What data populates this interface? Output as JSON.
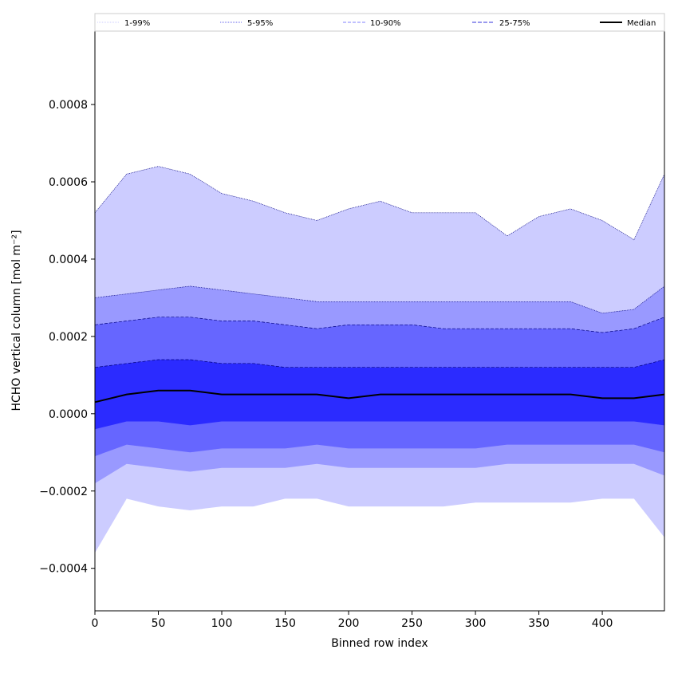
{
  "chart_data": {
    "type": "area",
    "xlabel": "Binned row index",
    "ylabel": "HCHO vertical column [mol m⁻²]",
    "xlim": [
      0,
      449
    ],
    "ylim": [
      -0.00051,
      0.00099
    ],
    "x_ticks": [
      0,
      50,
      100,
      150,
      200,
      250,
      300,
      350,
      400
    ],
    "x_tick_labels": [
      "0",
      "50",
      "100",
      "150",
      "200",
      "250",
      "300",
      "350",
      "400"
    ],
    "y_ticks": [
      -0.0004,
      -0.0002,
      0.0,
      0.0002,
      0.0004,
      0.0006,
      0.0008
    ],
    "y_tick_labels": [
      "−0.0004",
      "−0.0002",
      "0.0000",
      "0.0002",
      "0.0004",
      "0.0006",
      "0.0008"
    ],
    "grid": false,
    "legend_position": "top",
    "legend": [
      {
        "label": "1-99%",
        "color": "#ccccff",
        "dash": "1,1"
      },
      {
        "label": "5-95%",
        "color": "#6666ee",
        "dash": "1,1"
      },
      {
        "label": "10-90%",
        "color": "#8080ff",
        "dash": "4,2"
      },
      {
        "label": "25-75%",
        "color": "#3333dd",
        "dash": "5,2"
      },
      {
        "label": "Median",
        "color": "#000000",
        "dash": ""
      }
    ],
    "x": [
      0,
      25,
      50,
      75,
      100,
      125,
      150,
      175,
      200,
      225,
      250,
      275,
      300,
      325,
      350,
      375,
      400,
      425,
      449
    ],
    "bands": [
      {
        "name": "1-99%",
        "fill": "#ccccff",
        "upper": [
          0.00052,
          0.00062,
          0.00064,
          0.00062,
          0.00057,
          0.00055,
          0.00052,
          0.0005,
          0.00053,
          0.00055,
          0.00052,
          0.00052,
          0.00052,
          0.00046,
          0.00051,
          0.00053,
          0.0005,
          0.00045,
          0.00062
        ],
        "lower": [
          -0.00036,
          -0.00022,
          -0.00024,
          -0.00025,
          -0.00024,
          -0.00024,
          -0.00022,
          -0.00022,
          -0.00024,
          -0.00024,
          -0.00024,
          -0.00024,
          -0.00023,
          -0.00023,
          -0.00023,
          -0.00023,
          -0.00022,
          -0.00022,
          -0.00032
        ]
      },
      {
        "name": "5-95%",
        "fill": "#9999ff",
        "upper": [
          0.0003,
          0.00031,
          0.00032,
          0.00033,
          0.00032,
          0.00031,
          0.0003,
          0.00029,
          0.00029,
          0.00029,
          0.00029,
          0.00029,
          0.00029,
          0.00029,
          0.00029,
          0.00029,
          0.00026,
          0.00027,
          0.00033
        ],
        "lower": [
          -0.00018,
          -0.00013,
          -0.00014,
          -0.00015,
          -0.00014,
          -0.00014,
          -0.00014,
          -0.00013,
          -0.00014,
          -0.00014,
          -0.00014,
          -0.00014,
          -0.00014,
          -0.00013,
          -0.00013,
          -0.00013,
          -0.00013,
          -0.00013,
          -0.00016
        ]
      },
      {
        "name": "10-90%",
        "fill": "#6666ff",
        "upper": [
          0.00023,
          0.00024,
          0.00025,
          0.00025,
          0.00024,
          0.00024,
          0.00023,
          0.00022,
          0.00023,
          0.00023,
          0.00023,
          0.00022,
          0.00022,
          0.00022,
          0.00022,
          0.00022,
          0.00021,
          0.00022,
          0.00025
        ],
        "lower": [
          -0.00011,
          -8e-05,
          -9e-05,
          -0.0001,
          -9e-05,
          -9e-05,
          -9e-05,
          -8e-05,
          -9e-05,
          -9e-05,
          -9e-05,
          -9e-05,
          -9e-05,
          -8e-05,
          -8e-05,
          -8e-05,
          -8e-05,
          -8e-05,
          -0.0001
        ]
      },
      {
        "name": "25-75%",
        "fill": "#2b2bff",
        "upper": [
          0.00012,
          0.00013,
          0.00014,
          0.00014,
          0.00013,
          0.00013,
          0.00012,
          0.00012,
          0.00012,
          0.00012,
          0.00012,
          0.00012,
          0.00012,
          0.00012,
          0.00012,
          0.00012,
          0.00012,
          0.00012,
          0.00014
        ],
        "lower": [
          -4e-05,
          -2e-05,
          -2e-05,
          -3e-05,
          -2e-05,
          -2e-05,
          -2e-05,
          -2e-05,
          -2e-05,
          -2e-05,
          -2e-05,
          -2e-05,
          -2e-05,
          -2e-05,
          -2e-05,
          -2e-05,
          -2e-05,
          -2e-05,
          -3e-05
        ]
      }
    ],
    "series": [
      {
        "name": "Median",
        "color": "#000000",
        "values": [
          3e-05,
          5e-05,
          6e-05,
          6e-05,
          5e-05,
          5e-05,
          5e-05,
          5e-05,
          4e-05,
          5e-05,
          5e-05,
          5e-05,
          5e-05,
          5e-05,
          5e-05,
          5e-05,
          4e-05,
          4e-05,
          5e-05
        ]
      }
    ]
  }
}
